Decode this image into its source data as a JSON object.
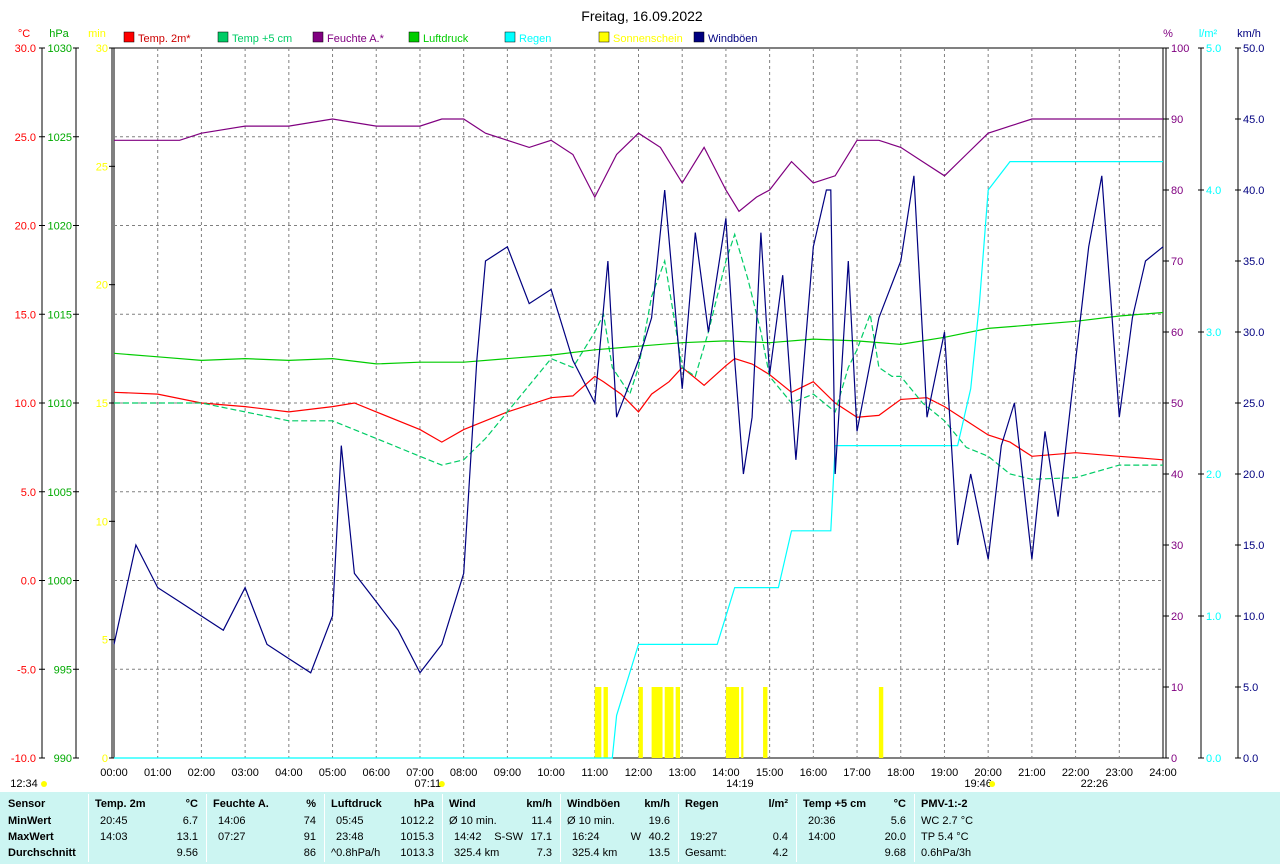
{
  "chart_data": {
    "type": "line",
    "title": "Freitag, 16.09.2022",
    "x_ticks": [
      "00:00",
      "01:00",
      "02:00",
      "03:00",
      "04:00",
      "05:00",
      "06:00",
      "07:00",
      "08:00",
      "09:00",
      "10:00",
      "11:00",
      "12:00",
      "13:00",
      "14:00",
      "15:00",
      "16:00",
      "17:00",
      "18:00",
      "19:00",
      "20:00",
      "21:00",
      "22:00",
      "23:00",
      "24:00"
    ],
    "x_range_hours": [
      0,
      24
    ],
    "grid": true,
    "legend_placement": "top",
    "axes": {
      "temp_c": {
        "unit": "°C",
        "color": "#ff0000",
        "min": -10,
        "max": 30,
        "ticks": [
          "-10.0",
          "-5.0",
          "0.0",
          "5.0",
          "10.0",
          "15.0",
          "20.0",
          "25.0",
          "30.0"
        ]
      },
      "pressure": {
        "unit": "hPa",
        "color": "#00aa00",
        "min": 990,
        "max": 1030,
        "ticks": [
          "990",
          "995",
          "1000",
          "1005",
          "1010",
          "1015",
          "1020",
          "1025",
          "1030"
        ]
      },
      "sun_min": {
        "unit": "min",
        "color": "#ffff00",
        "min": 0,
        "max": 30,
        "ticks": [
          "0",
          "5",
          "10",
          "15",
          "20",
          "25",
          "30"
        ]
      },
      "humidity": {
        "unit": "%",
        "color": "#800080",
        "min": 0,
        "max": 100,
        "ticks": [
          "0",
          "10",
          "20",
          "30",
          "40",
          "50",
          "60",
          "70",
          "80",
          "90",
          "100"
        ]
      },
      "rain": {
        "unit": "l/m²",
        "color": "#00ffff",
        "min": 0,
        "max": 5,
        "ticks": [
          "0.0",
          "1.0",
          "2.0",
          "3.0",
          "4.0",
          "5.0"
        ]
      },
      "gust": {
        "unit": "km/h",
        "color": "#000080",
        "min": 0,
        "max": 50,
        "ticks": [
          "0.0",
          "5.0",
          "10.0",
          "15.0",
          "20.0",
          "25.0",
          "30.0",
          "35.0",
          "40.0",
          "45.0",
          "50.0"
        ]
      }
    },
    "series": [
      {
        "name": "Temp. 2m*",
        "color": "#ff0000",
        "axis": "temp_c",
        "x": [
          0,
          1,
          2,
          3,
          4,
          5,
          5.5,
          6,
          7,
          7.5,
          8,
          9,
          10,
          10.5,
          11,
          11.2,
          11.6,
          12,
          12.3,
          12.7,
          13,
          13.5,
          14,
          14.2,
          14.6,
          15,
          15.5,
          16,
          16.5,
          17,
          17.5,
          18,
          18.6,
          19,
          19.5,
          20,
          20.5,
          21,
          22,
          23,
          24
        ],
        "y": [
          10.6,
          10.5,
          10.0,
          9.8,
          9.5,
          9.8,
          10.0,
          9.5,
          8.5,
          7.8,
          8.5,
          9.5,
          10.3,
          10.4,
          11.5,
          11.2,
          10.5,
          9.5,
          10.5,
          11.2,
          12.0,
          11.0,
          12.1,
          12.5,
          12.2,
          11.6,
          10.6,
          11.2,
          10.0,
          9.2,
          9.3,
          10.2,
          10.3,
          9.8,
          9.0,
          8.2,
          7.8,
          7.0,
          7.2,
          7.0,
          6.8
        ]
      },
      {
        "name": "Temp +5 cm",
        "color": "#00cc66",
        "axis": "temp_c",
        "x": [
          0,
          1,
          2,
          3,
          4,
          5,
          6,
          6.5,
          7,
          7.5,
          8,
          8.5,
          9,
          9.5,
          10,
          10.5,
          11,
          11.2,
          11.4,
          11.8,
          12,
          12.3,
          12.6,
          12.8,
          13,
          13.3,
          13.6,
          14,
          14.2,
          14.5,
          14.8,
          15,
          15.5,
          16,
          16.5,
          16.8,
          17,
          17.3,
          17.5,
          17.8,
          18,
          18.5,
          19,
          19.5,
          20,
          20.5,
          21,
          22,
          23,
          24
        ],
        "y": [
          10.0,
          10.0,
          10.0,
          9.5,
          9.0,
          9.0,
          8.0,
          7.5,
          7.0,
          6.5,
          6.8,
          8.0,
          9.5,
          11.0,
          12.5,
          12.0,
          14.0,
          15.0,
          12.0,
          10.5,
          12.0,
          16.0,
          18.0,
          15.0,
          12.0,
          11.5,
          14.0,
          18.0,
          19.5,
          17.0,
          14.0,
          11.5,
          10.0,
          10.5,
          9.5,
          12.0,
          13.0,
          15.0,
          12.0,
          11.5,
          11.5,
          10.0,
          9.0,
          7.5,
          7.0,
          6.0,
          5.7,
          5.8,
          6.5,
          6.5
        ]
      },
      {
        "name": "Feuchte A.*",
        "color": "#800080",
        "axis": "humidity",
        "x": [
          0,
          1,
          1.5,
          2,
          3,
          4,
          5,
          6,
          7,
          7.5,
          8,
          8.5,
          9,
          9.5,
          10,
          10.5,
          11,
          11.5,
          12,
          12.5,
          13,
          13.5,
          14,
          14.3,
          14.7,
          15,
          15.5,
          16,
          16.5,
          17,
          17.5,
          18,
          18.5,
          19,
          19.5,
          20,
          20.5,
          21,
          22,
          23,
          24
        ],
        "y": [
          87,
          87,
          87,
          88,
          89,
          89,
          90,
          89,
          89,
          90,
          90,
          88,
          87,
          86,
          87,
          85,
          79,
          85,
          88,
          86,
          81,
          86,
          80,
          77,
          79,
          80,
          84,
          81,
          82,
          87,
          87,
          86,
          84,
          82,
          85,
          88,
          89,
          90,
          90,
          90,
          90
        ]
      },
      {
        "name": "Luftdruck",
        "color": "#00cc00",
        "axis": "pressure",
        "x": [
          0,
          1,
          2,
          3,
          4,
          5,
          6,
          7,
          8,
          9,
          10,
          11,
          12,
          13,
          14,
          15,
          16,
          17,
          18,
          19,
          20,
          21,
          22,
          23,
          24
        ],
        "y": [
          1012.8,
          1012.6,
          1012.4,
          1012.5,
          1012.4,
          1012.5,
          1012.2,
          1012.3,
          1012.3,
          1012.5,
          1012.7,
          1013.0,
          1013.2,
          1013.4,
          1013.5,
          1013.4,
          1013.6,
          1013.5,
          1013.3,
          1013.7,
          1014.2,
          1014.4,
          1014.6,
          1014.9,
          1015.1
        ]
      },
      {
        "name": "Regen",
        "color": "#00ffff",
        "axis": "rain",
        "cumulative": true,
        "x": [
          0,
          11.4,
          11.5,
          12.0,
          13.8,
          14.2,
          14.4,
          15.2,
          15.5,
          16.4,
          16.5,
          17.0,
          19.3,
          19.6,
          19.8,
          20.0,
          20.5,
          21.0,
          24
        ],
        "y": [
          0.0,
          0.0,
          0.3,
          0.8,
          0.8,
          1.2,
          1.2,
          1.2,
          1.6,
          1.6,
          2.2,
          2.2,
          2.2,
          2.6,
          3.2,
          4.0,
          4.2,
          4.2,
          4.2
        ]
      },
      {
        "name": "Sonnenschein",
        "color": "#ffff00",
        "axis": "sun_min",
        "type": "bar",
        "intervals": [
          [
            11.0,
            11.15
          ],
          [
            11.2,
            11.3
          ],
          [
            12.0,
            12.1
          ],
          [
            12.3,
            12.55
          ],
          [
            12.6,
            12.8
          ],
          [
            12.85,
            12.95
          ],
          [
            14.0,
            14.3
          ],
          [
            14.35,
            14.4
          ],
          [
            14.85,
            14.95
          ],
          [
            17.5,
            17.6
          ]
        ],
        "values": [
          3,
          3,
          3,
          3,
          3,
          3,
          3,
          3,
          3,
          3
        ]
      },
      {
        "name": "Windböen",
        "color": "#000080",
        "axis": "gust",
        "x": [
          0,
          0.5,
          1,
          1.5,
          2,
          2.5,
          3,
          3.5,
          4,
          4.5,
          5,
          5.2,
          5.5,
          6,
          6.5,
          7,
          7.5,
          8,
          8.3,
          8.5,
          9,
          9.5,
          10,
          10.5,
          11,
          11.3,
          11.5,
          12,
          12.3,
          12.6,
          13,
          13.3,
          13.6,
          14,
          14.2,
          14.4,
          14.6,
          14.8,
          15,
          15.3,
          15.6,
          16,
          16.3,
          16.4,
          16.5,
          16.8,
          17,
          17.5,
          18,
          18.3,
          18.6,
          19,
          19.3,
          19.6,
          20,
          20.3,
          20.6,
          21,
          21.3,
          21.6,
          22,
          22.3,
          22.6,
          23,
          23.3,
          23.6,
          24
        ],
        "y": [
          8,
          15,
          12,
          11,
          10,
          9,
          12,
          8,
          7,
          6,
          10,
          22,
          13,
          11,
          9,
          6,
          8,
          13,
          28,
          35,
          36,
          32,
          33,
          28,
          25,
          35,
          24,
          28,
          31,
          40,
          26,
          37,
          30,
          38,
          28,
          20,
          24,
          37,
          27,
          34,
          21,
          36,
          40,
          40,
          20,
          35,
          23,
          31,
          35,
          41,
          24,
          30,
          15,
          20,
          14,
          22,
          25,
          14,
          23,
          17,
          28,
          36,
          41,
          24,
          31,
          35,
          36
        ]
      }
    ],
    "annotations": [
      "07:11",
      "14:19",
      "19:46",
      "22:26",
      "12:34"
    ]
  },
  "legend": [
    {
      "label": "Temp. 2m*",
      "color": "#ff0000"
    },
    {
      "label": "Temp +5 cm",
      "color": "#00cc66"
    },
    {
      "label": "Feuchte A.*",
      "color": "#800080"
    },
    {
      "label": "Luftdruck",
      "color": "#00cc00"
    },
    {
      "label": "Regen",
      "color": "#00ffff"
    },
    {
      "label": "Sonnenschein",
      "color": "#ffff00"
    },
    {
      "label": "Windböen",
      "color": "#000080"
    }
  ],
  "stats": {
    "row_labels": {
      "sensor": "Sensor",
      "min": "MinWert",
      "max": "MaxWert",
      "avg": "Durchschnitt"
    },
    "temp2m": {
      "h1": "Temp. 2m",
      "h2": "°C",
      "min_time": "20:45",
      "min_val": "6.7",
      "max_time": "14:03",
      "max_val": "13.1",
      "avg_label": "",
      "avg_val": "9.56"
    },
    "humidity": {
      "h1": "Feuchte A.",
      "h2": "%",
      "min_time": "14:06",
      "min_val": "74",
      "max_time": "07:27",
      "max_val": "91",
      "avg_label": "",
      "avg_val": "86"
    },
    "pressure": {
      "h1": "Luftdruck",
      "h2": "hPa",
      "min_time": "05:45",
      "min_val": "1012.2",
      "max_time": "23:48",
      "max_val": "1015.3",
      "avg_label": "^0.8hPa/h",
      "avg_val": "1013.3"
    },
    "wind": {
      "h1": "Wind",
      "h2": "km/h",
      "min_time": "Ø 10 min.",
      "min_val": "11.4",
      "max_time": "14:42",
      "max_dir": "S-SW",
      "max_val": "17.1",
      "avg_label": "325.4 km",
      "avg_val": "7.3"
    },
    "gusts": {
      "h1": "Windböen",
      "h2": "km/h",
      "min_time": "Ø 10 min.",
      "min_val": "19.6",
      "max_time": "16:24",
      "max_dir": "W",
      "max_val": "40.2",
      "avg_label": "325.4 km",
      "avg_val": "13.5"
    },
    "rain": {
      "h1": "Regen",
      "h2": "l/m²",
      "max_time": "19:27",
      "max_val": "0.4",
      "avg_label": "Gesamt:",
      "avg_val": "4.2"
    },
    "temp5cm": {
      "h1": "Temp +5 cm",
      "h2": "°C",
      "min_time": "20:36",
      "min_val": "5.6",
      "max_time": "14:00",
      "max_val": "20.0",
      "avg_val": "9.68"
    },
    "pmv": {
      "h1": "PMV-1:-2",
      "min_val": "WC 2.7 °C",
      "max_val": "TP 5.4 °C",
      "avg_val": "0.6hPa/3h"
    }
  }
}
